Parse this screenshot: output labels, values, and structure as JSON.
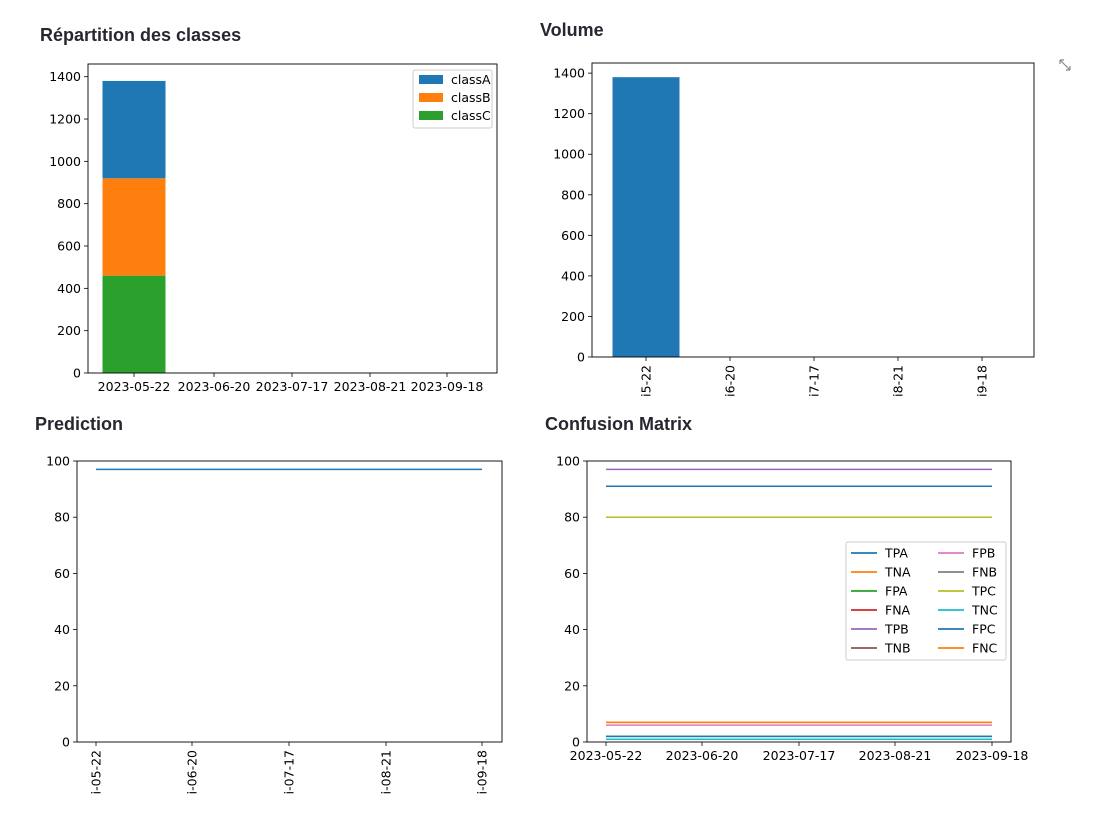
{
  "titles": {
    "classes": "Répartition des classes",
    "volume": "Volume",
    "prediction": "Prediction",
    "confusion": "Confusion Matrix"
  },
  "chart_data": [
    {
      "id": "classes",
      "type": "bar",
      "stacked": true,
      "title": "Répartition des classes",
      "x_ticks": [
        "2023-05-22",
        "2023-06-20",
        "2023-07-17",
        "2023-08-21",
        "2023-09-18"
      ],
      "categories": [
        "2023-05-22"
      ],
      "series": [
        {
          "name": "classC",
          "values": [
            460
          ],
          "color": "#2ca02c"
        },
        {
          "name": "classB",
          "values": [
            460
          ],
          "color": "#ff7f0e"
        },
        {
          "name": "classA",
          "values": [
            460
          ],
          "color": "#1f77b4"
        }
      ],
      "legend_order": [
        "classA",
        "classB",
        "classC"
      ],
      "ylim": [
        0,
        1460
      ],
      "y_ticks": [
        0,
        200,
        400,
        600,
        800,
        1000,
        1200,
        1400
      ],
      "legend": "top-right",
      "grid": false
    },
    {
      "id": "volume",
      "type": "bar",
      "title": "Volume",
      "x_ticks": [
        "i5-22",
        "i6-20",
        "i7-17",
        "i8-21",
        "i9-18"
      ],
      "categories": [
        "2023-05-22"
      ],
      "values": [
        1380
      ],
      "color": "#1f77b4",
      "ylim": [
        0,
        1450
      ],
      "y_ticks": [
        0,
        200,
        400,
        600,
        800,
        1000,
        1200,
        1400
      ],
      "grid": false
    },
    {
      "id": "prediction",
      "type": "line",
      "title": "Prediction",
      "x_ticks": [
        "i-05-22",
        "i-06-20",
        "i-07-17",
        "i-08-21",
        "i-09-18"
      ],
      "series": [
        {
          "name": "",
          "values": [
            97,
            97
          ],
          "color": "#1f77b4"
        }
      ],
      "ylim": [
        0,
        100
      ],
      "y_ticks": [
        0,
        20,
        40,
        60,
        80,
        100
      ],
      "grid": false
    },
    {
      "id": "confusion",
      "type": "line",
      "title": "Confusion Matrix",
      "x_ticks": [
        "2023-05-22",
        "2023-06-20",
        "2023-07-17",
        "2023-08-21",
        "2023-09-18"
      ],
      "ylim": [
        0,
        100
      ],
      "y_ticks": [
        0,
        20,
        40,
        60,
        80,
        100
      ],
      "legend": "center-right",
      "grid": false,
      "series": [
        {
          "name": "TPA",
          "values": [
            91,
            91
          ],
          "color": "#1f77b4"
        },
        {
          "name": "TNA",
          "values": [
            7,
            7
          ],
          "color": "#ff7f0e"
        },
        {
          "name": "FPA",
          "values": [
            2,
            2
          ],
          "color": "#2ca02c"
        },
        {
          "name": "FNA",
          "values": [
            1,
            1
          ],
          "color": "#d62728"
        },
        {
          "name": "TPB",
          "values": [
            97,
            97
          ],
          "color": "#9467bd"
        },
        {
          "name": "TNB",
          "values": [
            1,
            1
          ],
          "color": "#8c564b"
        },
        {
          "name": "FPB",
          "values": [
            6,
            6
          ],
          "color": "#e377c2"
        },
        {
          "name": "FNB",
          "values": [
            1,
            1
          ],
          "color": "#7f7f7f"
        },
        {
          "name": "TPC",
          "values": [
            80,
            80
          ],
          "color": "#bcbd22"
        },
        {
          "name": "TNC",
          "values": [
            1,
            1
          ],
          "color": "#17becf"
        },
        {
          "name": "FPC",
          "values": [
            2,
            2
          ],
          "color": "#1f77b4"
        },
        {
          "name": "FNC",
          "values": [
            7,
            7
          ],
          "color": "#ff7f0e"
        }
      ]
    }
  ]
}
